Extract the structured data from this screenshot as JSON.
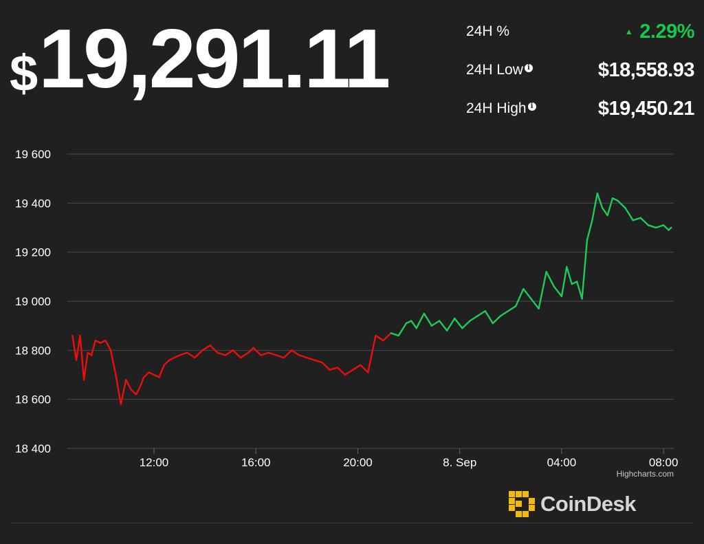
{
  "header": {
    "currency_symbol": "$",
    "price": "19,291.11"
  },
  "stats": [
    {
      "label": "24H %",
      "value": "2.29%",
      "direction": "up",
      "color": "#19c84a",
      "info_icon": false
    },
    {
      "label": "24H Low",
      "value": "$18,558.93",
      "info_icon": true
    },
    {
      "label": "24H High",
      "value": "$19,450.21",
      "info_icon": true
    }
  ],
  "chart_data": {
    "type": "line",
    "title": "",
    "xlabel": "",
    "ylabel": "",
    "ylim": [
      18400,
      19600
    ],
    "yticks": [
      18400,
      18600,
      18800,
      19000,
      19200,
      19400,
      19600
    ],
    "ytick_labels": [
      "18 400",
      "18 600",
      "18 800",
      "19 000",
      "19 200",
      "19 400",
      "19 600"
    ],
    "xlim_hours": [
      8.6,
      32.4
    ],
    "xticks": [
      {
        "hour": 12,
        "label": "12:00"
      },
      {
        "hour": 16,
        "label": "16:00"
      },
      {
        "hour": 20,
        "label": "20:00"
      },
      {
        "hour": 24,
        "label": "8. Sep"
      },
      {
        "hour": 28,
        "label": "04:00"
      },
      {
        "hour": 32,
        "label": "08:00"
      }
    ],
    "grid": true,
    "colors": {
      "below_open": "#e8100c",
      "above_open": "#1ecb58"
    },
    "series": [
      {
        "x_hours": [
          8.8,
          8.95,
          9.1,
          9.25,
          9.4,
          9.55,
          9.7,
          9.9,
          10.1,
          10.3,
          10.5,
          10.7,
          10.9,
          11.1,
          11.3,
          11.45,
          11.6,
          11.8,
          12.0,
          12.2,
          12.4,
          12.6,
          12.8,
          13.0,
          13.3,
          13.6,
          13.9,
          14.2,
          14.5,
          14.8,
          15.1,
          15.4,
          15.7,
          15.9,
          16.2,
          16.5,
          16.8,
          17.1,
          17.4,
          17.7,
          18.0,
          18.3,
          18.6,
          18.9,
          19.2,
          19.5,
          19.8,
          20.1,
          20.4,
          20.7,
          21.0,
          21.3,
          21.6,
          21.9,
          22.1,
          22.3,
          22.6,
          22.9,
          23.2,
          23.5,
          23.8,
          24.1,
          24.4,
          24.7,
          25.0,
          25.3,
          25.6,
          25.9,
          26.2,
          26.5,
          26.8,
          27.1,
          27.4,
          27.7,
          28.0,
          28.2,
          28.4,
          28.6,
          28.8,
          29.0,
          29.2,
          29.4,
          29.6,
          29.8,
          30.0,
          30.2,
          30.5,
          30.8,
          31.1,
          31.4,
          31.7,
          32.0,
          32.2,
          32.3
        ],
        "y": [
          18860,
          18760,
          18860,
          18680,
          18790,
          18780,
          18840,
          18830,
          18840,
          18800,
          18700,
          18580,
          18680,
          18640,
          18620,
          18650,
          18690,
          18710,
          18700,
          18690,
          18740,
          18760,
          18770,
          18780,
          18790,
          18770,
          18800,
          18820,
          18790,
          18780,
          18800,
          18770,
          18790,
          18810,
          18780,
          18790,
          18780,
          18770,
          18800,
          18780,
          18770,
          18760,
          18750,
          18720,
          18730,
          18700,
          18720,
          18740,
          18710,
          18860,
          18840,
          18870,
          18860,
          18910,
          18920,
          18890,
          18950,
          18900,
          18920,
          18880,
          18930,
          18890,
          18920,
          18940,
          18960,
          18910,
          18940,
          18960,
          18980,
          19050,
          19010,
          18970,
          19120,
          19060,
          19020,
          19140,
          19070,
          19080,
          19010,
          19250,
          19330,
          19440,
          19380,
          19350,
          19420,
          19410,
          19380,
          19330,
          19340,
          19310,
          19300,
          19310,
          19290,
          19300
        ]
      }
    ],
    "open_value": 18860
  },
  "credit": "Highcharts.com",
  "logo": {
    "text": "CoinDesk",
    "mark_color": "#f2b90f"
  }
}
